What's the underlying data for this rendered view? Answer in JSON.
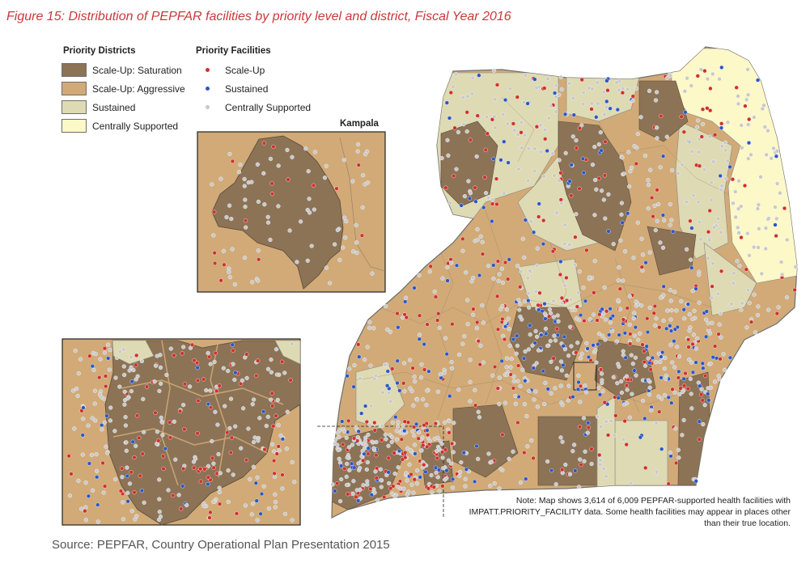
{
  "title": "Figure 15: Distribution of PEPFAR facilities by priority level and district, Fiscal Year 2016",
  "legend": {
    "districts_heading": "Priority Districts",
    "districts": [
      {
        "label": "Scale-Up: Saturation",
        "color": "#8c7356"
      },
      {
        "label": "Scale-Up: Aggressive",
        "color": "#d1aa77"
      },
      {
        "label": "Sustained",
        "color": "#dedab3"
      },
      {
        "label": "Centrally Supported",
        "color": "#fcf8c8"
      }
    ],
    "facilities_heading": "Priority Facilities",
    "facilities": [
      {
        "label": "Scale-Up",
        "color": "#d0312d"
      },
      {
        "label": "Sustained",
        "color": "#2b57c9"
      },
      {
        "label": "Centrally Supported",
        "color": "#c9c9c9"
      }
    ]
  },
  "kampala_label": "Kampala",
  "note": "Note: Map shows 3,614 of 6,009 PEPFAR-supported health facilities with IMPATT.PRIORITY_FACILITY data. Some health facilities may appear in places other than their true location.",
  "source": "Source: PEPFAR, Country Operational Plan Presentation 2015"
}
